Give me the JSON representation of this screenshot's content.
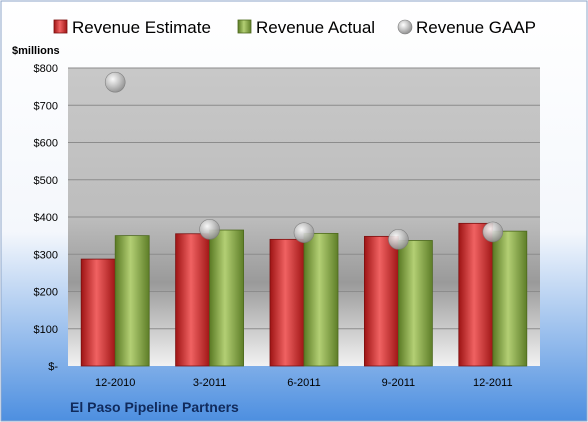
{
  "chart_data": {
    "type": "bar",
    "categories": [
      "12-2010",
      "3-2011",
      "6-2011",
      "9-2011",
      "12-2011"
    ],
    "series": [
      {
        "name": "Revenue Estimate",
        "kind": "bar",
        "color": "#d42a2a",
        "values": [
          287,
          355,
          340,
          348,
          383
        ]
      },
      {
        "name": "Revenue Actual",
        "kind": "bar",
        "color": "#8aa84a",
        "values": [
          350,
          365,
          356,
          337,
          362
        ]
      },
      {
        "name": "Revenue GAAP",
        "kind": "marker",
        "color": "#b8b8b8",
        "values": [
          762,
          367,
          358,
          340,
          360
        ]
      }
    ],
    "ylabel": "$millions",
    "ylim": [
      0,
      800
    ],
    "yticks": [
      0,
      100,
      200,
      300,
      400,
      500,
      600,
      700,
      800
    ],
    "ytick_labels": [
      "$-",
      "$100",
      "$200",
      "$300",
      "$400",
      "$500",
      "$600",
      "$700",
      "$800"
    ],
    "grid": true,
    "legend_position": "top"
  },
  "company": "El Paso Pipeline Partners"
}
